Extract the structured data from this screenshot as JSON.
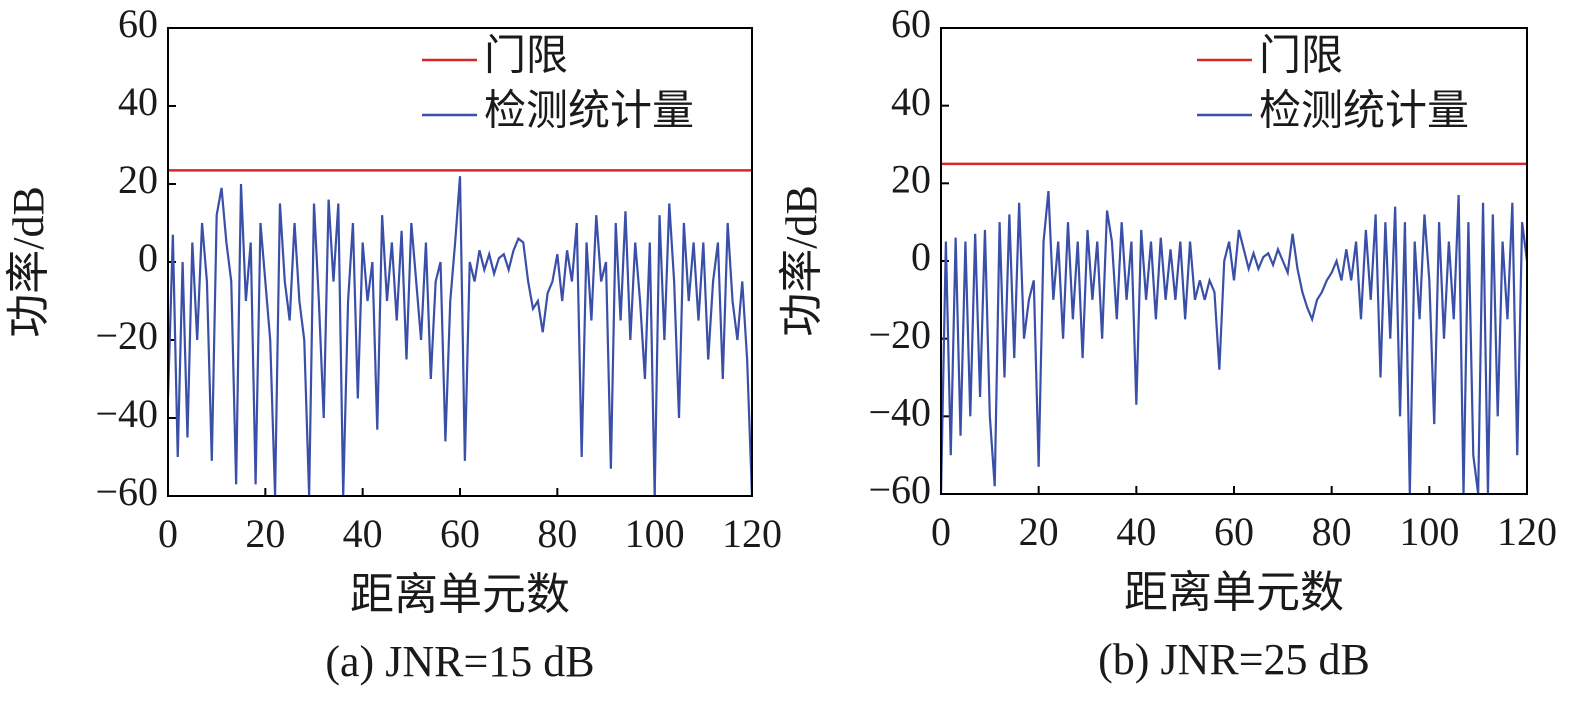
{
  "chart_data": [
    {
      "type": "line",
      "caption": "(a) JNR=15 dB",
      "xlabel": "距离单元数",
      "ylabel": "功率/dB",
      "xlim": [
        0,
        120
      ],
      "ylim": [
        -60,
        60
      ],
      "xticks": [
        0,
        20,
        40,
        60,
        80,
        100,
        120
      ],
      "yticks": [
        {
          "value": -60,
          "label": "−60"
        },
        {
          "value": -40,
          "label": "−40"
        },
        {
          "value": -20,
          "label": "−20"
        },
        0,
        20,
        40,
        60
      ],
      "legend": "upper right",
      "series": [
        {
          "name": "门限",
          "color": "#d62728",
          "x": [
            0,
            120
          ],
          "values": [
            23.5,
            23.5
          ]
        },
        {
          "name": "检测统计量",
          "color": "#3a4fa8",
          "x": [
            0,
            1,
            2,
            3,
            4,
            5,
            6,
            7,
            8,
            9,
            10,
            11,
            12,
            13,
            14,
            15,
            16,
            17,
            18,
            19,
            20,
            21,
            22,
            23,
            24,
            25,
            26,
            27,
            28,
            29,
            30,
            31,
            32,
            33,
            34,
            35,
            36,
            37,
            38,
            39,
            40,
            41,
            42,
            43,
            44,
            45,
            46,
            47,
            48,
            49,
            50,
            51,
            52,
            53,
            54,
            55,
            56,
            57,
            58,
            59,
            60,
            61,
            62,
            63,
            64,
            65,
            66,
            67,
            68,
            69,
            70,
            71,
            72,
            73,
            74,
            75,
            76,
            77,
            78,
            79,
            80,
            81,
            82,
            83,
            84,
            85,
            86,
            87,
            88,
            89,
            90,
            91,
            92,
            93,
            94,
            95,
            96,
            97,
            98,
            99,
            100,
            101,
            102,
            103,
            104,
            105,
            106,
            107,
            108,
            109,
            110,
            111,
            112,
            113,
            114,
            115,
            116,
            117,
            118,
            119,
            120
          ],
          "values": [
            -35,
            7,
            -50,
            0,
            -45,
            5,
            -20,
            10,
            -5,
            -51,
            12,
            19,
            5,
            -5,
            -57,
            20,
            -10,
            5,
            -57,
            10,
            -5,
            -20,
            -60,
            15,
            -5,
            -15,
            10,
            -10,
            -20,
            -60,
            15,
            -10,
            -40,
            16,
            -5,
            15,
            -60,
            -10,
            10,
            -35,
            5,
            -10,
            0,
            -43,
            12,
            -10,
            5,
            -15,
            8,
            -25,
            10,
            -5,
            -20,
            5,
            -30,
            -5,
            0,
            -46,
            -10,
            5,
            22,
            -51,
            0,
            -5,
            3,
            -2,
            2,
            -3,
            1,
            2,
            -2,
            3,
            6,
            5,
            -5,
            -12,
            -10,
            -18,
            -8,
            -5,
            2,
            -10,
            3,
            -5,
            10,
            -50,
            5,
            -15,
            12,
            -5,
            0,
            -53,
            10,
            -15,
            13,
            -20,
            5,
            -10,
            -30,
            5,
            -60,
            12,
            -20,
            15,
            -5,
            -40,
            10,
            -10,
            5,
            -15,
            5,
            -25,
            -5,
            5,
            -30,
            10,
            -10,
            -20,
            -5,
            -25,
            -60
          ]
        }
      ]
    },
    {
      "type": "line",
      "caption": "(b) JNR=25 dB",
      "xlabel": "距离单元数",
      "ylabel": "功率/dB",
      "xlim": [
        0,
        120
      ],
      "ylim": [
        -60,
        60
      ],
      "xticks": [
        0,
        20,
        40,
        60,
        80,
        100,
        120
      ],
      "yticks": [
        {
          "value": -60,
          "label": "−60"
        },
        {
          "value": -40,
          "label": "−40"
        },
        {
          "value": -20,
          "label": "−20"
        },
        0,
        20,
        40,
        60
      ],
      "legend": "upper right",
      "series": [
        {
          "name": "门限",
          "color": "#d62728",
          "x": [
            0,
            120
          ],
          "values": [
            25,
            25
          ]
        },
        {
          "name": "检测统计量",
          "color": "#3a4fa8",
          "x": [
            0,
            1,
            2,
            3,
            4,
            5,
            6,
            7,
            8,
            9,
            10,
            11,
            12,
            13,
            14,
            15,
            16,
            17,
            18,
            19,
            20,
            21,
            22,
            23,
            24,
            25,
            26,
            27,
            28,
            29,
            30,
            31,
            32,
            33,
            34,
            35,
            36,
            37,
            38,
            39,
            40,
            41,
            42,
            43,
            44,
            45,
            46,
            47,
            48,
            49,
            50,
            51,
            52,
            53,
            54,
            55,
            56,
            57,
            58,
            59,
            60,
            61,
            62,
            63,
            64,
            65,
            66,
            67,
            68,
            69,
            70,
            71,
            72,
            73,
            74,
            75,
            76,
            77,
            78,
            79,
            80,
            81,
            82,
            83,
            84,
            85,
            86,
            87,
            88,
            89,
            90,
            91,
            92,
            93,
            94,
            95,
            96,
            97,
            98,
            99,
            100,
            101,
            102,
            103,
            104,
            105,
            106,
            107,
            108,
            109,
            110,
            111,
            112,
            113,
            114,
            115,
            116,
            117,
            118,
            119,
            120
          ],
          "values": [
            -60,
            5,
            -50,
            6,
            -45,
            5,
            -40,
            7,
            -35,
            8,
            -40,
            -58,
            10,
            -30,
            12,
            -25,
            15,
            -20,
            -10,
            -5,
            -53,
            5,
            18,
            -10,
            5,
            -20,
            10,
            -15,
            5,
            -25,
            8,
            -10,
            5,
            -20,
            13,
            5,
            -15,
            10,
            -10,
            5,
            -37,
            8,
            -10,
            5,
            -15,
            6,
            -10,
            3,
            -10,
            5,
            -15,
            5,
            -10,
            -5,
            -10,
            -5,
            -8,
            -28,
            0,
            5,
            -5,
            8,
            3,
            -2,
            2,
            -2,
            1,
            2,
            -1,
            3,
            0,
            -3,
            7,
            -2,
            -8,
            -12,
            -15,
            -10,
            -8,
            -5,
            -3,
            0,
            -5,
            3,
            -5,
            5,
            -15,
            8,
            -10,
            12,
            -30,
            10,
            -20,
            14,
            -40,
            10,
            -60,
            5,
            -15,
            12,
            -5,
            -42,
            10,
            -20,
            5,
            -15,
            17,
            -60,
            10,
            -50,
            -60,
            15,
            -60,
            12,
            -40,
            5,
            -15,
            15,
            -50,
            10,
            0
          ]
        }
      ]
    }
  ]
}
